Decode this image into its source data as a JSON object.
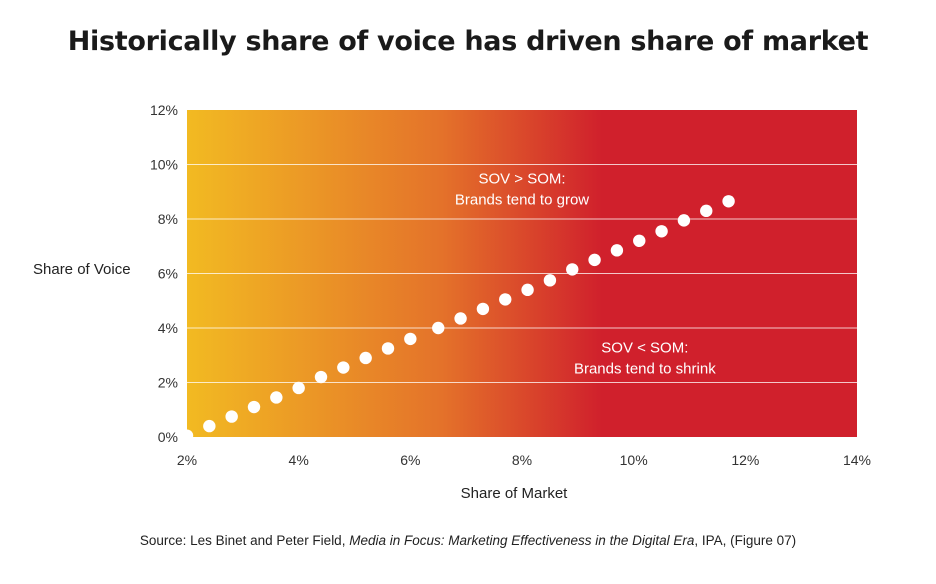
{
  "title": "Historically share of voice has driven share of market",
  "source": {
    "prefix": "Source: Les Binet and Peter Field, ",
    "italic": "Media in Focus: Marketing Effectiveness in the Digital Era",
    "suffix": ", IPA, (Figure 07)"
  },
  "colors": {
    "gradient_start": "#F2BA22",
    "gradient_mid": "#E4722A",
    "gradient_end": "#D0202C",
    "points": "#ffffff",
    "gridlines": "#ffffff"
  },
  "chart_data": {
    "type": "scatter",
    "xlabel": "Share of Market",
    "ylabel": "Share of Voice",
    "xlim": [
      2,
      14
    ],
    "ylim": [
      0,
      12
    ],
    "x_ticks": [
      "2%",
      "4%",
      "6%",
      "8%",
      "10%",
      "12%",
      "14%"
    ],
    "y_ticks": [
      "0%",
      "2%",
      "4%",
      "6%",
      "8%",
      "10%",
      "12%"
    ],
    "grid": true,
    "annotations": [
      {
        "lines": [
          "SOV > SOM:",
          "Brands tend to grow"
        ],
        "x": 8.0,
        "y": 9.3
      },
      {
        "lines": [
          "SOV < SOM:",
          "Brands tend to shrink"
        ],
        "x": 10.2,
        "y": 3.1
      }
    ],
    "points": [
      {
        "x": 2.0,
        "y": 0.05
      },
      {
        "x": 2.4,
        "y": 0.4
      },
      {
        "x": 2.8,
        "y": 0.75
      },
      {
        "x": 3.2,
        "y": 1.1
      },
      {
        "x": 3.6,
        "y": 1.45
      },
      {
        "x": 4.0,
        "y": 1.8
      },
      {
        "x": 4.4,
        "y": 2.2
      },
      {
        "x": 4.8,
        "y": 2.55
      },
      {
        "x": 5.2,
        "y": 2.9
      },
      {
        "x": 5.6,
        "y": 3.25
      },
      {
        "x": 6.0,
        "y": 3.6
      },
      {
        "x": 6.5,
        "y": 4.0
      },
      {
        "x": 6.9,
        "y": 4.35
      },
      {
        "x": 7.3,
        "y": 4.7
      },
      {
        "x": 7.7,
        "y": 5.05
      },
      {
        "x": 8.1,
        "y": 5.4
      },
      {
        "x": 8.5,
        "y": 5.75
      },
      {
        "x": 8.9,
        "y": 6.15
      },
      {
        "x": 9.3,
        "y": 6.5
      },
      {
        "x": 9.7,
        "y": 6.85
      },
      {
        "x": 10.1,
        "y": 7.2
      },
      {
        "x": 10.5,
        "y": 7.55
      },
      {
        "x": 10.9,
        "y": 7.95
      },
      {
        "x": 11.3,
        "y": 8.3
      },
      {
        "x": 11.7,
        "y": 8.65
      }
    ]
  }
}
